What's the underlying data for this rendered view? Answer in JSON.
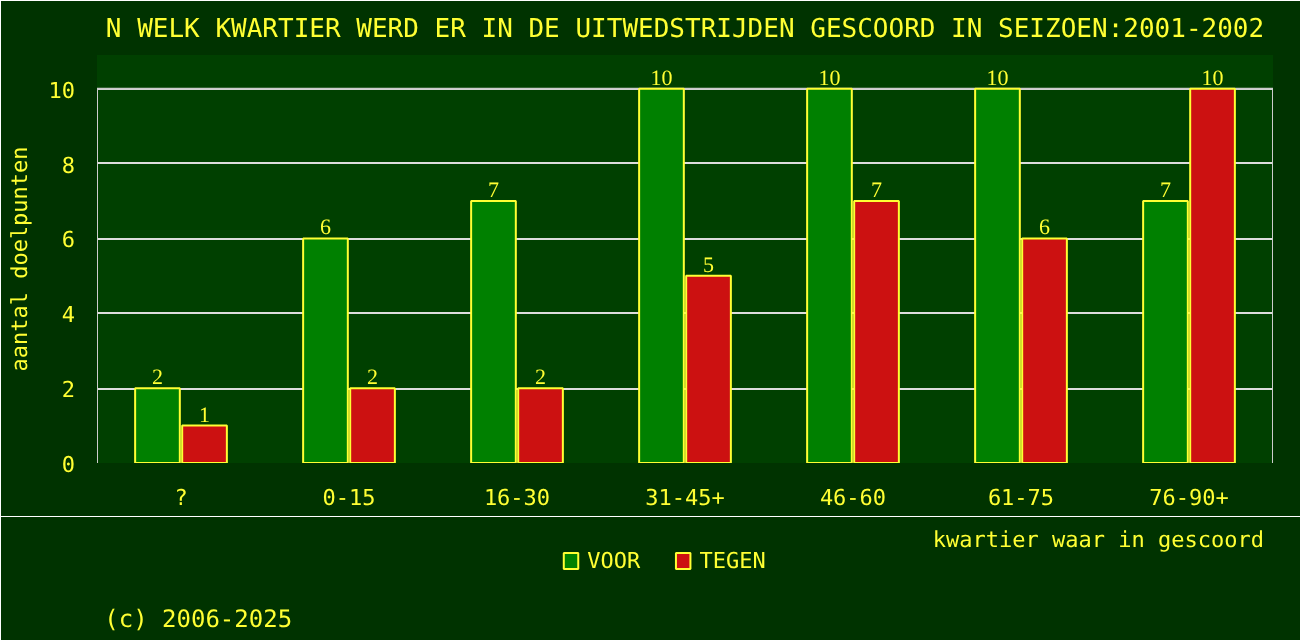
{
  "chart_data": {
    "type": "bar",
    "title": "N WELK KWARTIER WERD ER IN DE UITWEDSTRIJDEN GESCOORD IN SEIZOEN:2001-2002",
    "xlabel": "kwartier waar in gescoord",
    "ylabel": "aantal doelpunten",
    "annotations": [
      "(c) 2006-2025"
    ],
    "categories": [
      "?",
      "0-15",
      "16-30",
      "31-45+",
      "46-60",
      "61-75",
      "76-90+"
    ],
    "series": [
      {
        "name": "VOOR",
        "color": "#008000",
        "values": [
          2,
          6,
          7,
          10,
          10,
          10,
          7
        ]
      },
      {
        "name": "TEGEN",
        "color": "#cc1111",
        "values": [
          1,
          2,
          2,
          5,
          7,
          6,
          10
        ]
      }
    ],
    "ylim": [
      0,
      10
    ],
    "yticks": [
      0,
      2,
      4,
      6,
      8,
      10
    ],
    "grid": "y",
    "legend": "bottom",
    "data_labels": true
  }
}
